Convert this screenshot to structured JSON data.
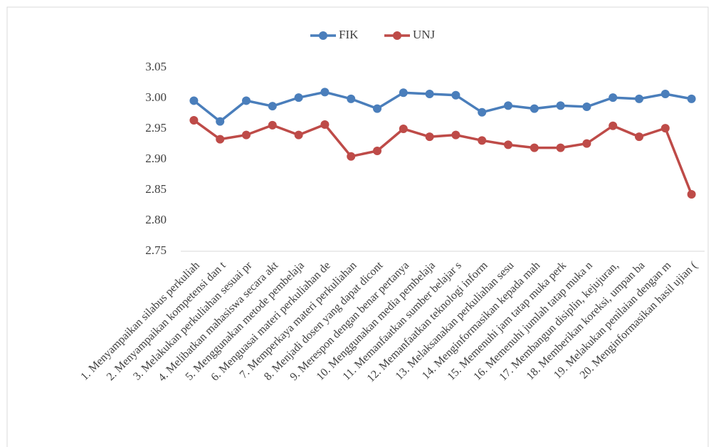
{
  "chart_data": {
    "type": "line",
    "categories": [
      "1. Menyampaikan silabus perkuliah",
      "2. Menyampaikan kompetensi dan t",
      "3. Melakukan perkuliahan sesuai pr",
      "4. Melibatkan mahasiswa secara akt",
      "5. Menggunakan metode pembelaja",
      "6. Menguasai materi perkuliahan de",
      "7. Memperkaya materi perkuliahan",
      "8. Menjadi dosen yang dapat dicont",
      "9. Merespon dengan benar pertanya",
      "10. Menggunakan media pembelaja",
      "11. Memanfaatkan sumber belajar s",
      "12. Memanfaatkan teknologi inform",
      "13. Melaksanakan perkuliahan sesu",
      "14. Menginformasikan kepada mah",
      "15. Memenuhi jam tatap muka perk",
      "16. Memenuhi jumlah tatap muka n",
      "17. Membangun disiplin, kejujuran,",
      "18. Memberikan koreksi, umpan ba",
      "19. Melakukan penilaian dengan m",
      "20. Menginformasikan hasil ujian ("
    ],
    "series": [
      {
        "name": "FIK",
        "color": "#4a7ebb",
        "values": [
          2.996,
          2.962,
          2.996,
          2.987,
          3.001,
          3.01,
          2.999,
          2.983,
          3.009,
          3.007,
          3.005,
          2.977,
          2.988,
          2.983,
          2.988,
          2.986,
          3.001,
          2.999,
          3.007,
          2.999
        ]
      },
      {
        "name": "UNJ",
        "color": "#be4b48",
        "values": [
          2.964,
          2.933,
          2.94,
          2.956,
          2.94,
          2.957,
          2.905,
          2.914,
          2.95,
          2.937,
          2.94,
          2.931,
          2.924,
          2.919,
          2.919,
          2.926,
          2.955,
          2.937,
          2.951,
          2.843
        ]
      }
    ],
    "ylim": [
      2.75,
      3.05
    ],
    "yticks": [
      {
        "value": 2.75,
        "label": "2.75"
      },
      {
        "value": 2.8,
        "label": "2.80"
      },
      {
        "value": 2.85,
        "label": "2.85"
      },
      {
        "value": 2.9,
        "label": "2.90"
      },
      {
        "value": 2.95,
        "label": "2.95"
      },
      {
        "value": 3.0,
        "label": "3.00"
      },
      {
        "value": 3.05,
        "label": "3.05"
      }
    ],
    "legend": "top"
  }
}
